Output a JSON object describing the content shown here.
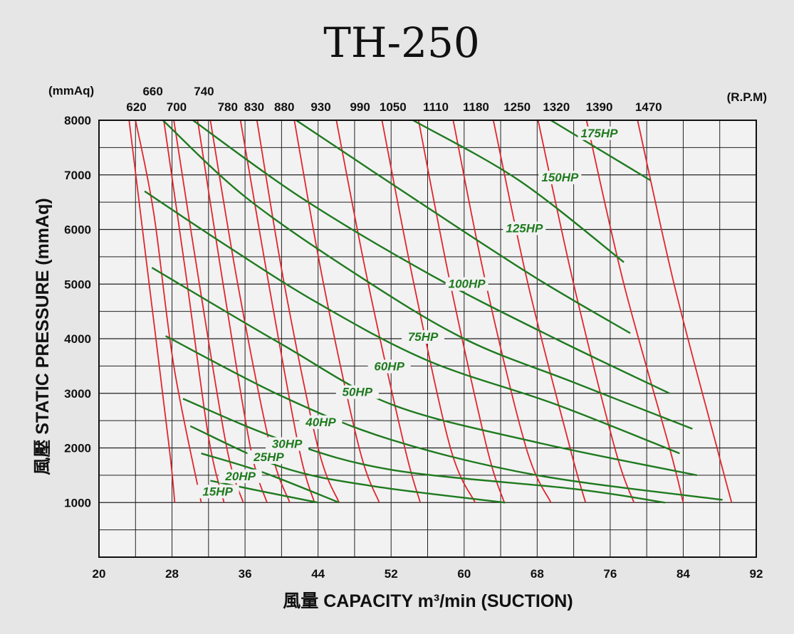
{
  "title": "TH-250",
  "chart_data": {
    "type": "line",
    "title": "TH-250",
    "xlabel": "風量  CAPACITY  m³/min (SUCTION)",
    "ylabel": "風壓  STATIC  PRESSURE   (mmAq)",
    "y_unit_label": "(mmAq)",
    "rpm_unit_label": "(R.P.M)",
    "xlim": [
      20,
      92
    ],
    "ylim": [
      0,
      8000
    ],
    "x_ticks": [
      "20",
      "28",
      "36",
      "44",
      "52",
      "60",
      "68",
      "76",
      "84",
      "92"
    ],
    "y_ticks": [
      "1000",
      "2000",
      "3000",
      "4000",
      "5000",
      "6000",
      "7000",
      "8000"
    ],
    "grid": true,
    "rpm_curves": [
      {
        "rpm": "620",
        "label_x": 24.1,
        "label_row": "lower",
        "points": [
          [
            23.3,
            8000
          ],
          [
            25.5,
            5000
          ],
          [
            27.7,
            2000
          ],
          [
            28.3,
            1000
          ]
        ]
      },
      {
        "rpm": "660",
        "label_x": 25.9,
        "label_row": "upper",
        "points": [
          [
            24.0,
            8000
          ],
          [
            26.0,
            6300
          ],
          [
            28.2,
            3500
          ],
          [
            31.2,
            1000
          ]
        ]
      },
      {
        "rpm": "700",
        "label_x": 28.5,
        "label_row": "lower",
        "points": [
          [
            27.1,
            8000
          ],
          [
            29.5,
            5200
          ],
          [
            32.0,
            2200
          ],
          [
            33.7,
            1000
          ]
        ]
      },
      {
        "rpm": "740",
        "label_x": 31.5,
        "label_row": "upper",
        "points": [
          [
            28.2,
            8000
          ],
          [
            31.0,
            5000
          ],
          [
            34.0,
            2000
          ],
          [
            35.8,
            1000
          ]
        ]
      },
      {
        "rpm": "780",
        "label_x": 34.1,
        "label_row": "lower",
        "points": [
          [
            30.8,
            8000
          ],
          [
            33.6,
            5000
          ],
          [
            36.6,
            2000
          ],
          [
            38.4,
            1000
          ]
        ]
      },
      {
        "rpm": "830",
        "label_x": 37.0,
        "label_row": "lower",
        "points": [
          [
            32.2,
            8000
          ],
          [
            35.2,
            5000
          ],
          [
            38.8,
            2000
          ],
          [
            40.9,
            1000
          ]
        ]
      },
      {
        "rpm": "880",
        "label_x": 40.3,
        "label_row": "lower",
        "points": [
          [
            35.5,
            8000
          ],
          [
            38.6,
            5000
          ],
          [
            41.9,
            2000
          ],
          [
            43.6,
            1000
          ]
        ]
      },
      {
        "rpm": "930",
        "label_x": 44.3,
        "label_row": "lower",
        "points": [
          [
            37.3,
            8000
          ],
          [
            40.3,
            5000
          ],
          [
            44.0,
            2000
          ],
          [
            46.3,
            1000
          ]
        ]
      },
      {
        "rpm": "990",
        "label_x": 48.6,
        "label_row": "lower",
        "points": [
          [
            41.4,
            8000
          ],
          [
            44.6,
            5000
          ],
          [
            48.5,
            2000
          ],
          [
            50.7,
            1000
          ]
        ]
      },
      {
        "rpm": "1050",
        "label_x": 52.2,
        "label_row": "lower",
        "points": [
          [
            46.0,
            8000
          ],
          [
            49.5,
            5000
          ],
          [
            53.5,
            2000
          ],
          [
            55.2,
            1000
          ]
        ]
      },
      {
        "rpm": "1110",
        "label_x": 56.9,
        "label_row": "lower",
        "points": [
          [
            51.0,
            8000
          ],
          [
            54.5,
            5000
          ],
          [
            58.5,
            2000
          ],
          [
            61.2,
            1000
          ]
        ]
      },
      {
        "rpm": "1180",
        "label_x": 61.3,
        "label_row": "lower",
        "points": [
          [
            55.0,
            8000
          ],
          [
            58.5,
            5000
          ],
          [
            62.5,
            2000
          ],
          [
            64.4,
            1000
          ]
        ]
      },
      {
        "rpm": "1250",
        "label_x": 65.8,
        "label_row": "lower",
        "points": [
          [
            58.8,
            8000
          ],
          [
            62.4,
            5000
          ],
          [
            66.8,
            2000
          ],
          [
            69.5,
            1000
          ]
        ]
      },
      {
        "rpm": "1320",
        "label_x": 70.1,
        "label_row": "lower",
        "points": [
          [
            63.2,
            8000
          ],
          [
            67.0,
            5000
          ],
          [
            71.6,
            2000
          ],
          [
            73.3,
            1000
          ]
        ]
      },
      {
        "rpm": "1390",
        "label_x": 74.8,
        "label_row": "lower",
        "points": [
          [
            68.1,
            8000
          ],
          [
            72.0,
            5000
          ],
          [
            76.5,
            2000
          ],
          [
            78.6,
            1000
          ]
        ]
      },
      {
        "rpm": "1470",
        "label_x": 80.2,
        "label_row": "lower",
        "points": [
          [
            73.4,
            8000
          ],
          [
            77.5,
            5000
          ],
          [
            82.5,
            2000
          ],
          [
            84.0,
            1000
          ]
        ]
      },
      {
        "rpm": "",
        "label_x": 0,
        "label_row": "none",
        "points": [
          [
            79.0,
            8000
          ],
          [
            83.0,
            5000
          ],
          [
            87.7,
            2000
          ],
          [
            89.3,
            1000
          ]
        ]
      }
    ],
    "hp_curves": [
      {
        "name": "15HP",
        "label_x": 33.0,
        "label_y": 1130,
        "points": [
          [
            32.2,
            1400
          ],
          [
            38.0,
            1200
          ],
          [
            44.0,
            1000
          ]
        ]
      },
      {
        "name": "20HP",
        "label_x": 35.5,
        "label_y": 1410,
        "points": [
          [
            31.2,
            1900
          ],
          [
            38.0,
            1550
          ],
          [
            46.3,
            1000
          ]
        ]
      },
      {
        "name": "25HP",
        "label_x": 38.6,
        "label_y": 1760,
        "points": [
          [
            30.0,
            2400
          ],
          [
            40.0,
            1650
          ],
          [
            50.0,
            1300
          ],
          [
            64.5,
            1000
          ]
        ]
      },
      {
        "name": "30HP",
        "label_x": 40.6,
        "label_y": 2000,
        "points": [
          [
            29.2,
            2900
          ],
          [
            40.0,
            2150
          ],
          [
            52.0,
            1600
          ],
          [
            72.0,
            1250
          ],
          [
            82.0,
            1000
          ]
        ]
      },
      {
        "name": "40HP",
        "label_x": 44.3,
        "label_y": 2400,
        "points": [
          [
            27.3,
            4050
          ],
          [
            40.0,
            2950
          ],
          [
            52.0,
            2150
          ],
          [
            68.0,
            1500
          ],
          [
            88.3,
            1050
          ]
        ]
      },
      {
        "name": "50HP",
        "label_x": 48.3,
        "label_y": 2950,
        "points": [
          [
            25.8,
            5300
          ],
          [
            40.0,
            3900
          ],
          [
            52.0,
            2800
          ],
          [
            68.0,
            2100
          ],
          [
            85.5,
            1500
          ]
        ]
      },
      {
        "name": "60HP",
        "label_x": 51.8,
        "label_y": 3420,
        "points": [
          [
            25.0,
            6700
          ],
          [
            34.0,
            5700
          ],
          [
            44.0,
            4650
          ],
          [
            56.0,
            3600
          ],
          [
            70.0,
            2800
          ],
          [
            83.6,
            1900
          ]
        ]
      },
      {
        "name": "75HP",
        "label_x": 55.5,
        "label_y": 3960,
        "points": [
          [
            27.0,
            8000
          ],
          [
            36.0,
            6600
          ],
          [
            48.0,
            5200
          ],
          [
            60.0,
            4000
          ],
          [
            72.0,
            3200
          ],
          [
            85.0,
            2350
          ]
        ]
      },
      {
        "name": "100HP",
        "label_x": 60.3,
        "label_y": 4930,
        "points": [
          [
            30.3,
            8000
          ],
          [
            42.0,
            6600
          ],
          [
            56.0,
            5200
          ],
          [
            70.0,
            4000
          ],
          [
            82.5,
            3000
          ]
        ]
      },
      {
        "name": "125HP",
        "label_x": 66.6,
        "label_y": 5950,
        "points": [
          [
            41.6,
            8000
          ],
          [
            56.0,
            6400
          ],
          [
            68.0,
            5100
          ],
          [
            78.2,
            4100
          ]
        ]
      },
      {
        "name": "150HP",
        "label_x": 70.5,
        "label_y": 6880,
        "points": [
          [
            54.4,
            8000
          ],
          [
            66.0,
            6900
          ],
          [
            77.5,
            5400
          ]
        ]
      },
      {
        "name": "175HP",
        "label_x": 74.8,
        "label_y": 7690,
        "points": [
          [
            69.5,
            8000
          ],
          [
            80.4,
            6900
          ]
        ]
      }
    ],
    "colors": {
      "rpm": "#e0262d",
      "hp": "#1f7a1f",
      "grid": "#222222",
      "background": "#e6e6e6"
    }
  }
}
